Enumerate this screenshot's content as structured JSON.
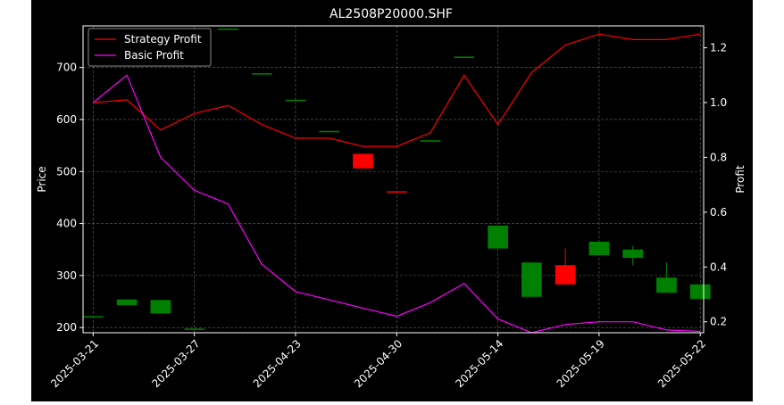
{
  "chart_data": {
    "type": "candlestick+line",
    "title": "AL2508P20000.SHF",
    "ylabel_left": "Price",
    "ylabel_right": "Profit",
    "ylim_left": [
      190,
      780
    ],
    "ylim_right": [
      0.16,
      1.28
    ],
    "yticks_left": [
      200,
      300,
      400,
      500,
      600,
      700
    ],
    "yticks_right": [
      0.2,
      0.4,
      0.6,
      0.8,
      1.0,
      1.2
    ],
    "xtick_labels": [
      "2025-03-21",
      "2025-03-27",
      "2025-04-23",
      "2025-04-30",
      "2025-05-14",
      "2025-05-19",
      "2025-05-22"
    ],
    "xtick_indices": [
      0,
      3,
      6,
      9,
      12,
      15,
      18
    ],
    "grid": true,
    "legend_position": "top-left",
    "colors": {
      "up": "#008000",
      "down": "#ff0000",
      "strategy": "#ff0000",
      "basic": "#ff00ff",
      "background": "#000000",
      "text": "#ffffff"
    },
    "candles": [
      {
        "open": 222,
        "close": 222,
        "high": 222,
        "low": 222
      },
      {
        "open": 243,
        "close": 254,
        "high": 254,
        "low": 243
      },
      {
        "open": 227,
        "close": 253,
        "high": 253,
        "low": 227
      },
      {
        "open": 197,
        "close": 198,
        "high": 198,
        "low": 197
      },
      {
        "open": 775,
        "close": 775,
        "high": 775,
        "low": 775
      },
      {
        "open": 689,
        "close": 689,
        "high": 689,
        "low": 689
      },
      {
        "open": 638,
        "close": 638,
        "high": 638,
        "low": 638
      },
      {
        "open": 578,
        "close": 578,
        "high": 578,
        "low": 578
      },
      {
        "open": 534,
        "close": 506,
        "high": 534,
        "low": 506
      },
      {
        "open": 462,
        "close": 461,
        "high": 462,
        "low": 461
      },
      {
        "open": 560,
        "close": 560,
        "high": 560,
        "low": 560
      },
      {
        "open": 721,
        "close": 721,
        "high": 721,
        "low": 721
      },
      {
        "open": 352,
        "close": 396,
        "high": 396,
        "low": 352
      },
      {
        "open": 259,
        "close": 325,
        "high": 325,
        "low": 259
      },
      {
        "open": 320,
        "close": 283,
        "high": 352,
        "low": 283
      },
      {
        "open": 339,
        "close": 365,
        "high": 365,
        "low": 339
      },
      {
        "open": 334,
        "close": 350,
        "high": 357,
        "low": 320
      },
      {
        "open": 267,
        "close": 296,
        "high": 325,
        "low": 267
      },
      {
        "open": 255,
        "close": 283,
        "high": 283,
        "low": 255
      }
    ],
    "series": [
      {
        "name": "Strategy Profit",
        "values": [
          1.0,
          1.01,
          0.9,
          0.96,
          0.99,
          0.92,
          0.87,
          0.87,
          0.84,
          0.84,
          0.89,
          1.1,
          0.92,
          1.11,
          1.21,
          1.25,
          1.23,
          1.23,
          1.25
        ]
      },
      {
        "name": "Basic Profit",
        "values": [
          1.0,
          1.1,
          0.8,
          0.68,
          0.63,
          0.41,
          0.31,
          0.28,
          0.25,
          0.22,
          0.27,
          0.34,
          0.21,
          0.16,
          0.19,
          0.2,
          0.2,
          0.17,
          0.165
        ]
      }
    ]
  }
}
